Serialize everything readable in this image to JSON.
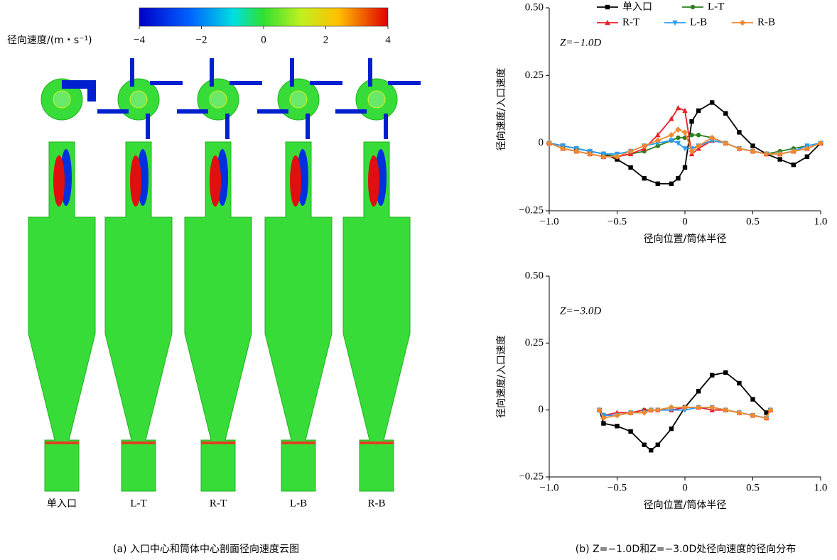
{
  "contour_panel": {
    "colorbar": {
      "label": "径向速度/(m・s⁻¹)",
      "range": [
        -4,
        4
      ],
      "ticks": [
        {
          "value": -4,
          "label": "−4"
        },
        {
          "value": -2,
          "label": "−2"
        },
        0,
        2,
        4
      ]
    },
    "cases": [
      "单入口",
      "L-T",
      "R-T",
      "L-B",
      "R-B"
    ],
    "caption": "(a) 入口中心和筒体中心剖面径向速度云图"
  },
  "caption_b": "(b) Z=−1.0D和Z=−3.0D处径向速度的径向分布",
  "chart_data": [
    {
      "type": "line",
      "annotation": "Z=−1.0D",
      "x_label": "径向位置/筒体半径",
      "y_label": "径向速度/入口速度",
      "x": [
        -1,
        -0.9,
        -0.8,
        -0.7,
        -0.6,
        -0.5,
        -0.4,
        -0.3,
        -0.2,
        -0.1,
        -0.05,
        0,
        0.05,
        0.1,
        0.2,
        0.3,
        0.4,
        0.5,
        0.6,
        0.7,
        0.8,
        0.9,
        1
      ],
      "xlim": [
        -1,
        1
      ],
      "ylim": [
        -0.25,
        0.5
      ],
      "xticks": [
        {
          "value": -1,
          "label": "−1.0"
        },
        {
          "value": -0.5,
          "label": "−0.5"
        },
        0,
        0.5,
        {
          "value": 1,
          "label": "1.0"
        }
      ],
      "yticks": [
        {
          "value": -0.25,
          "label": "−0.25"
        },
        0,
        0.25,
        {
          "value": 0.5,
          "label": "0.50"
        }
      ],
      "series": [
        {
          "name": "单入口",
          "color": "#000000",
          "marker": "square",
          "values": [
            0,
            -0.01,
            -0.02,
            -0.03,
            -0.04,
            -0.06,
            -0.09,
            -0.13,
            -0.15,
            -0.15,
            -0.13,
            -0.09,
            0.08,
            0.12,
            0.15,
            0.11,
            0.04,
            -0.01,
            -0.04,
            -0.06,
            -0.08,
            -0.05,
            0
          ]
        },
        {
          "name": "L-T",
          "color": "#2e7d1e",
          "marker": "circle",
          "values": [
            0,
            -0.01,
            -0.02,
            -0.03,
            -0.04,
            -0.05,
            -0.04,
            -0.03,
            -0.01,
            0.01,
            0.02,
            0.02,
            0.03,
            0.03,
            0.02,
            0,
            -0.02,
            -0.03,
            -0.04,
            -0.03,
            -0.02,
            -0.01,
            0
          ]
        },
        {
          "name": "R-T",
          "color": "#e8202a",
          "marker": "triangle",
          "values": [
            0,
            -0.02,
            -0.03,
            -0.04,
            -0.05,
            -0.05,
            -0.04,
            -0.02,
            0.03,
            0.09,
            0.13,
            0.12,
            -0.04,
            -0.02,
            0.01,
            0,
            -0.02,
            -0.03,
            -0.04,
            -0.04,
            -0.03,
            -0.02,
            0
          ]
        },
        {
          "name": "L-B",
          "color": "#2a9df4",
          "marker": "triangle-down",
          "values": [
            0,
            -0.01,
            -0.02,
            -0.03,
            -0.04,
            -0.04,
            -0.03,
            -0.01,
            0,
            0.01,
            0,
            -0.02,
            -0.02,
            -0.01,
            0.01,
            0,
            -0.02,
            -0.03,
            -0.04,
            -0.04,
            -0.03,
            -0.01,
            0
          ]
        },
        {
          "name": "R-B",
          "color": "#f08a30",
          "marker": "diamond",
          "values": [
            0,
            -0.02,
            -0.03,
            -0.04,
            -0.05,
            -0.05,
            -0.03,
            -0.01,
            0.01,
            0.03,
            0.05,
            0.04,
            -0.03,
            -0.01,
            0.02,
            0,
            -0.02,
            -0.03,
            -0.04,
            -0.04,
            -0.03,
            -0.02,
            0
          ]
        }
      ]
    },
    {
      "type": "line",
      "annotation": "Z=−3.0D",
      "x_label": "径向位置/筒体半径",
      "y_label": "径向速度/入口速度",
      "x": [
        -0.63,
        -0.6,
        -0.5,
        -0.4,
        -0.3,
        -0.25,
        -0.2,
        -0.1,
        0,
        0.1,
        0.2,
        0.3,
        0.4,
        0.5,
        0.6,
        0.63
      ],
      "xlim": [
        -1,
        1
      ],
      "ylim": [
        -0.25,
        0.5
      ],
      "xticks": [
        {
          "value": -1,
          "label": "−1.0"
        },
        {
          "value": -0.5,
          "label": "−0.5"
        },
        0,
        0.5,
        {
          "value": 1,
          "label": "1.0"
        }
      ],
      "yticks": [
        {
          "value": -0.25,
          "label": "−0.25"
        },
        0,
        0.25,
        {
          "value": 0.5,
          "label": "0.50"
        }
      ],
      "series": [
        {
          "color": "#000000",
          "marker": "square",
          "values": [
            0,
            -0.05,
            -0.06,
            -0.08,
            -0.13,
            -0.15,
            -0.13,
            -0.07,
            0.01,
            0.07,
            0.13,
            0.14,
            0.1,
            0.04,
            -0.01,
            0
          ]
        },
        {
          "color": "#2e7d1e",
          "marker": "circle",
          "values": [
            0,
            -0.02,
            -0.02,
            -0.01,
            0,
            0,
            0,
            0.01,
            0.01,
            0.01,
            0.01,
            0,
            -0.01,
            -0.02,
            -0.03,
            0
          ]
        },
        {
          "color": "#e8202a",
          "marker": "triangle",
          "values": [
            0,
            -0.02,
            -0.01,
            -0.01,
            0,
            0,
            0,
            0,
            0.01,
            0.01,
            0,
            0,
            -0.01,
            -0.02,
            -0.03,
            0
          ]
        },
        {
          "color": "#2a9df4",
          "marker": "triangle-down",
          "values": [
            0,
            -0.02,
            -0.02,
            -0.01,
            -0.01,
            0,
            0,
            0,
            0,
            0.01,
            0.01,
            0,
            -0.01,
            -0.02,
            -0.03,
            0
          ]
        },
        {
          "color": "#f08a30",
          "marker": "diamond",
          "values": [
            0,
            -0.03,
            -0.02,
            -0.01,
            -0.01,
            0,
            0,
            0.01,
            0.01,
            0.01,
            0.01,
            0,
            -0.01,
            -0.02,
            -0.03,
            0
          ]
        }
      ]
    }
  ]
}
